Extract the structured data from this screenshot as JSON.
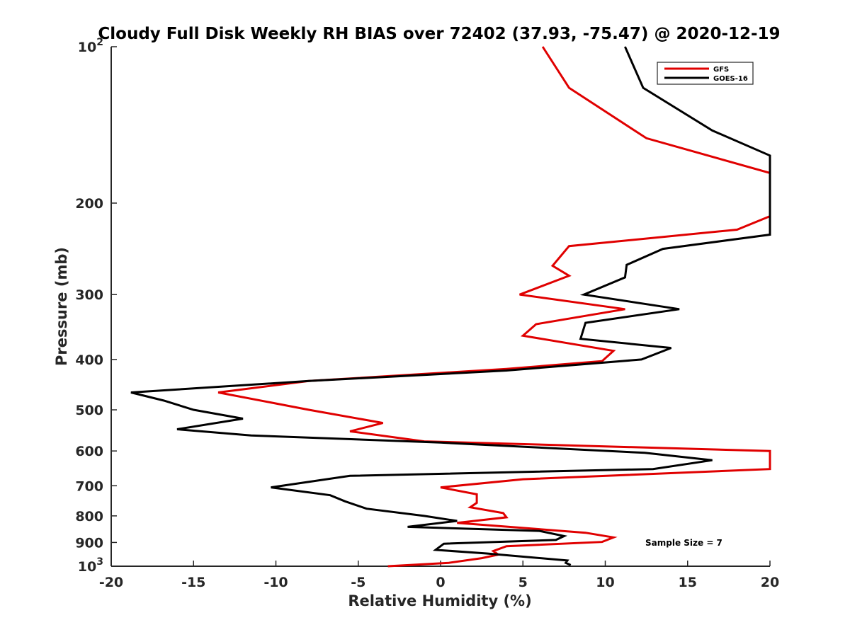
{
  "chart_data": {
    "type": "line",
    "title": "Cloudy Full Disk Weekly RH BIAS over 72402 (37.93, -75.47) @ 2020-12-19",
    "xlabel": "Relative Humidity (%)",
    "ylabel": "Pressure (mb)",
    "xlim": [
      -20,
      20
    ],
    "ylim": [
      100,
      1000
    ],
    "y_scale": "log",
    "y_reversed": true,
    "grid": false,
    "legend_position": "top-right",
    "x_ticks": [
      "-20",
      "-15",
      "-10",
      "-5",
      "0",
      "5",
      "10",
      "15",
      "20"
    ],
    "y_ticks": [
      {
        "value": 100,
        "base": "10",
        "exp": "2"
      },
      {
        "value": 200,
        "label": "200"
      },
      {
        "value": 300,
        "label": "300"
      },
      {
        "value": 400,
        "label": "400"
      },
      {
        "value": 500,
        "label": "500"
      },
      {
        "value": 600,
        "label": "600"
      },
      {
        "value": 700,
        "label": "700"
      },
      {
        "value": 800,
        "label": "800"
      },
      {
        "value": 900,
        "label": "900"
      },
      {
        "value": 1000,
        "base": "10",
        "exp": "3"
      }
    ],
    "annotation": "Sample Size = 7",
    "series": [
      {
        "name": "GFS",
        "color": "#e00000",
        "points": [
          [
            6.2,
            100
          ],
          [
            7.8,
            120
          ],
          [
            12.5,
            150
          ],
          [
            20,
            175
          ],
          [
            20,
            212
          ],
          [
            18,
            225
          ],
          [
            7.8,
            242
          ],
          [
            6.8,
            264
          ],
          [
            7.8,
            276
          ],
          [
            4.8,
            300
          ],
          [
            11.2,
            320
          ],
          [
            5.8,
            342
          ],
          [
            5,
            360
          ],
          [
            10.5,
            385
          ],
          [
            9.8,
            403
          ],
          [
            4,
            417
          ],
          [
            -8,
            440
          ],
          [
            -13.5,
            463
          ],
          [
            -8,
            500
          ],
          [
            -3.5,
            530
          ],
          [
            -5.5,
            550
          ],
          [
            -1,
            575
          ],
          [
            20,
            600
          ],
          [
            20,
            650
          ],
          [
            5,
            680
          ],
          [
            0,
            705
          ],
          [
            2.2,
            727
          ],
          [
            2.2,
            755
          ],
          [
            1.8,
            770
          ],
          [
            3.8,
            790
          ],
          [
            4,
            805
          ],
          [
            1,
            825
          ],
          [
            8.8,
            862
          ],
          [
            10.5,
            880
          ],
          [
            9.8,
            898
          ],
          [
            4,
            915
          ],
          [
            3.2,
            935
          ],
          [
            3.5,
            950
          ],
          [
            2.5,
            965
          ],
          [
            0.5,
            985
          ],
          [
            -3.2,
            1000
          ]
        ]
      },
      {
        "name": "GOES-16",
        "color": "#000000",
        "points": [
          [
            11.2,
            100
          ],
          [
            12.3,
            120
          ],
          [
            16.5,
            145
          ],
          [
            20,
            162
          ],
          [
            20,
            230
          ],
          [
            13.5,
            245
          ],
          [
            11.3,
            263
          ],
          [
            11.2,
            278
          ],
          [
            8.7,
            300
          ],
          [
            14.5,
            320
          ],
          [
            8.8,
            340
          ],
          [
            8.5,
            365
          ],
          [
            14,
            380
          ],
          [
            12.2,
            400
          ],
          [
            4,
            420
          ],
          [
            -8,
            440
          ],
          [
            -18.8,
            463
          ],
          [
            -16.8,
            480
          ],
          [
            -15,
            500
          ],
          [
            -12,
            520
          ],
          [
            -16,
            545
          ],
          [
            -11.5,
            560
          ],
          [
            0,
            578
          ],
          [
            12.4,
            605
          ],
          [
            16.5,
            625
          ],
          [
            12.9,
            650
          ],
          [
            -5.5,
            670
          ],
          [
            -10.3,
            705
          ],
          [
            -6.7,
            730
          ],
          [
            -5.8,
            750
          ],
          [
            -4.5,
            775
          ],
          [
            -1,
            800
          ],
          [
            1,
            818
          ],
          [
            -2,
            840
          ],
          [
            6,
            855
          ],
          [
            7.5,
            875
          ],
          [
            7,
            890
          ],
          [
            0.2,
            905
          ],
          [
            -0.3,
            930
          ],
          [
            2.8,
            945
          ],
          [
            7.7,
            975
          ],
          [
            7.6,
            985
          ],
          [
            7.9,
            995
          ]
        ]
      }
    ]
  }
}
